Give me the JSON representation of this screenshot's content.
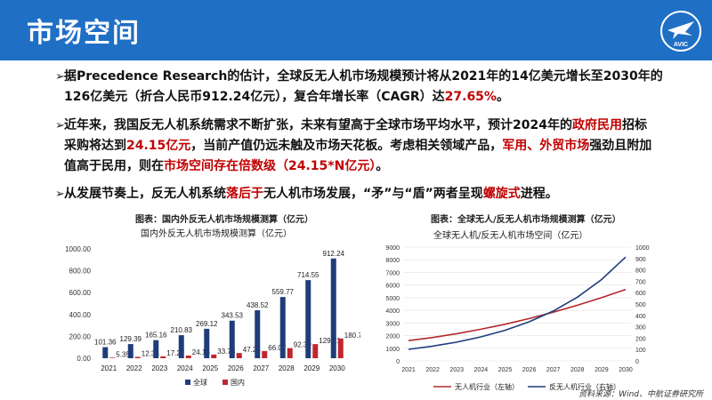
{
  "header": {
    "title": "市场空间"
  },
  "logo": {
    "text": "AVIC"
  },
  "bullets": [
    {
      "line1": "据Precedence Research的估计，全球反无人机市场规模预计将从2021年的14亿美元增长至2030年的",
      "line2_a": "126亿美元（折合人民币912.24亿元），复合年增长率（CAGR）达",
      "line2_b": "27.65%",
      "line2_c": "。"
    },
    {
      "line1_a": "近年来，我国反无人机系统需求不断扩张，未来有望高于全球市场平均水平，预计2024年的",
      "line1_b": "政府民用",
      "line1_c": "招标",
      "line2_a": "采购将达到",
      "line2_b": "24.15亿元",
      "line2_c": "，当前产值仍远未触及市场天花板。考虑相关领域产品，",
      "line2_d": "军用、外贸市场",
      "line2_e": "强劲且附加",
      "line3_a": "值高于民用，则在",
      "line3_b": "市场空间存在倍数级（24.15*N亿元）",
      "line3_c": "。"
    },
    {
      "a": "从发展节奏上，反无人机系统",
      "b": "落后于",
      "c": "无人机市场发展，“矛”与“盾”两者呈现",
      "d": "螺旋式",
      "e": "进程。"
    }
  ],
  "chart_left": {
    "caption": "图表：国内外反无人机市场规模测算（亿元）",
    "subtitle": "国内外反无人机市场规模测算（亿元）"
  },
  "chart_right": {
    "caption": "图表：全球无人/反无人机市场规模测算（亿元）",
    "subtitle": "全球无人机/反无人机市场空间（亿元）"
  },
  "source": "资料来源：Wind、中航证券研究所",
  "chart_data": [
    {
      "type": "bar",
      "categories": [
        "2021",
        "2022",
        "2023",
        "2024",
        "2025",
        "2026",
        "2027",
        "2028",
        "2029",
        "2030"
      ],
      "series": [
        {
          "name": "全球",
          "color": "#1f3d7a",
          "values": [
            101.36,
            129.39,
            165.16,
            210.83,
            269.12,
            343.53,
            438.52,
            559.77,
            714.55,
            912.24
          ]
        },
        {
          "name": "国内",
          "color": "#c0262d",
          "values": [
            5.35,
            12.35,
            17.27,
            24.15,
            33.78,
            47.24,
            66.07,
            92.39,
            129.21,
            180.7
          ]
        }
      ],
      "value_labels_global": [
        "101.36",
        "129.39",
        "165.16",
        "210.83",
        "269.12",
        "343.53",
        "438.52",
        "559.77",
        "714.55",
        "912.24"
      ],
      "value_labels_domestic": [
        "5.35",
        "12.35",
        "17.27",
        "24.15",
        "33.78",
        "47.24",
        "66.07",
        "92.39",
        "129.21",
        "180.70"
      ],
      "yticks": [
        "1000.00",
        "800.00",
        "600.00",
        "400.00",
        "200.00",
        "0.00"
      ],
      "ylim": [
        0,
        1000
      ]
    },
    {
      "type": "line",
      "x": [
        "2021",
        "2022",
        "2023",
        "2024",
        "2025",
        "2026",
        "2027",
        "2028",
        "2029",
        "2030"
      ],
      "series": [
        {
          "name": "无人机行业（左轴）",
          "color": "#b3282d",
          "axis": "left",
          "values": [
            1600,
            1850,
            2150,
            2500,
            2900,
            3350,
            3850,
            4400,
            5000,
            5650
          ]
        },
        {
          "name": "反无人机行业（右轴）",
          "color": "#1f3d7a",
          "axis": "right",
          "values": [
            101.36,
            129.39,
            165.16,
            210.83,
            269.12,
            343.53,
            438.52,
            559.77,
            714.55,
            912.24
          ]
        }
      ],
      "yticks_left": [
        "9000",
        "8000",
        "7000",
        "6000",
        "5000",
        "4000",
        "3000",
        "2000",
        "1000",
        "0"
      ],
      "yticks_right": [
        "1000",
        "900",
        "800",
        "700",
        "600",
        "500",
        "400",
        "300",
        "200",
        "100",
        "0"
      ],
      "ylim_left": [
        0,
        9000
      ],
      "ylim_right": [
        0,
        1000
      ]
    }
  ]
}
